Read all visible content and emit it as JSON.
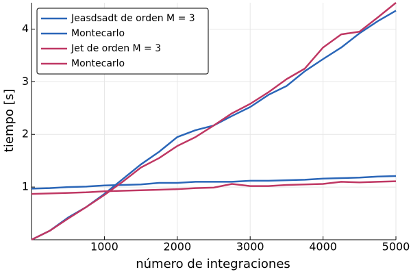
{
  "chart_data": {
    "type": "line",
    "x_label": "número de integraciones",
    "y_label": "tiempo [s]",
    "x": [
      0,
      250,
      500,
      750,
      1000,
      1250,
      1500,
      1750,
      2000,
      2250,
      2500,
      2750,
      3000,
      3250,
      3500,
      3750,
      4000,
      4250,
      4500,
      4750,
      5000
    ],
    "series": [
      {
        "name": "Jeasdsadt de orden M = 3",
        "color": "#2a66b8",
        "values": [
          0,
          0.17,
          0.42,
          0.62,
          0.87,
          1.15,
          1.43,
          1.67,
          1.95,
          2.08,
          2.17,
          2.35,
          2.52,
          2.75,
          2.92,
          3.2,
          3.43,
          3.65,
          3.92,
          4.15,
          4.35
        ]
      },
      {
        "name": "Montecarlo",
        "color": "#2a66b8",
        "values": [
          0.97,
          0.98,
          1.0,
          1.01,
          1.03,
          1.04,
          1.05,
          1.08,
          1.08,
          1.1,
          1.1,
          1.1,
          1.12,
          1.12,
          1.13,
          1.14,
          1.16,
          1.17,
          1.18,
          1.2,
          1.21
        ]
      },
      {
        "name": "Jet de orden M = 3",
        "color": "#bf3763",
        "values": [
          0,
          0.17,
          0.4,
          0.62,
          0.85,
          1.1,
          1.37,
          1.55,
          1.78,
          1.95,
          2.17,
          2.4,
          2.58,
          2.8,
          3.05,
          3.25,
          3.65,
          3.9,
          3.95,
          4.22,
          4.5
        ]
      },
      {
        "name": "Montecarlo",
        "color": "#bf3763",
        "values": [
          0.87,
          0.88,
          0.89,
          0.9,
          0.92,
          0.93,
          0.94,
          0.95,
          0.96,
          0.98,
          0.99,
          1.06,
          1.02,
          1.02,
          1.04,
          1.05,
          1.06,
          1.1,
          1.09,
          1.1,
          1.11
        ]
      }
    ],
    "xlim": [
      0,
      5000
    ],
    "xticks": [
      1000,
      2000,
      3000,
      4000,
      5000
    ],
    "ylim": [
      0,
      4.5
    ],
    "yticks": [
      1,
      2,
      3,
      4
    ],
    "grid": true,
    "legend": "top-left"
  }
}
